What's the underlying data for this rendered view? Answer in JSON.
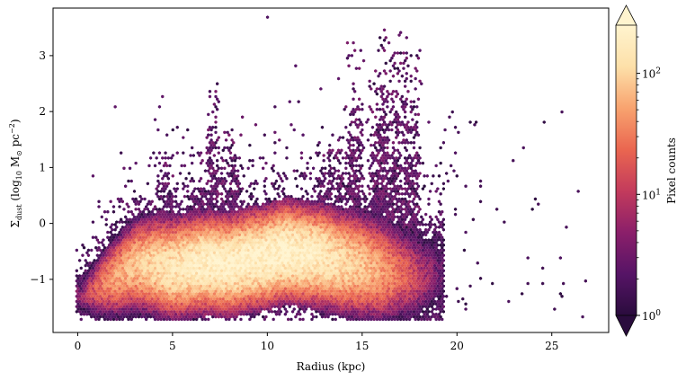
{
  "chart_data": {
    "type": "heatmap",
    "subtype": "hexbin",
    "xlabel": "Radius (kpc)",
    "ylabel_parts": {
      "sym": "Σ",
      "sub": "dust",
      "open": " (log",
      "logsub": "10",
      "unit": " M",
      "sun": "⊙",
      "pc": " pc",
      "exp": "−2",
      "close": ")"
    },
    "xlim": [
      -1.3,
      28
    ],
    "ylim": [
      -1.95,
      3.85
    ],
    "xticks": [
      0,
      5,
      10,
      15,
      20,
      25
    ],
    "xtick_labels": [
      "0",
      "5",
      "10",
      "15",
      "20",
      "25"
    ],
    "yticks": [
      -1,
      0,
      1,
      2,
      3
    ],
    "ytick_labels": [
      "−1",
      "0",
      "1",
      "2",
      "3"
    ],
    "density_ridge": [
      {
        "x": 0.2,
        "y_center": -1.3,
        "spread": 0.25,
        "peak_count": 5
      },
      {
        "x": 1.0,
        "y_center": -1.15,
        "spread": 0.4,
        "peak_count": 20
      },
      {
        "x": 2.0,
        "y_center": -0.95,
        "spread": 0.5,
        "peak_count": 50
      },
      {
        "x": 3.0,
        "y_center": -0.75,
        "spread": 0.55,
        "peak_count": 80
      },
      {
        "x": 4.0,
        "y_center": -0.75,
        "spread": 0.6,
        "peak_count": 110
      },
      {
        "x": 5.0,
        "y_center": -0.8,
        "spread": 0.6,
        "peak_count": 150
      },
      {
        "x": 6.0,
        "y_center": -0.75,
        "spread": 0.6,
        "peak_count": 180
      },
      {
        "x": 7.0,
        "y_center": -0.7,
        "spread": 0.6,
        "peak_count": 200
      },
      {
        "x": 8.0,
        "y_center": -0.75,
        "spread": 0.6,
        "peak_count": 200
      },
      {
        "x": 9.0,
        "y_center": -0.65,
        "spread": 0.6,
        "peak_count": 210
      },
      {
        "x": 10.0,
        "y_center": -0.6,
        "spread": 0.6,
        "peak_count": 220
      },
      {
        "x": 11.0,
        "y_center": -0.5,
        "spread": 0.6,
        "peak_count": 230
      },
      {
        "x": 12.0,
        "y_center": -0.55,
        "spread": 0.6,
        "peak_count": 200
      },
      {
        "x": 13.0,
        "y_center": -0.6,
        "spread": 0.62,
        "peak_count": 160
      },
      {
        "x": 14.0,
        "y_center": -0.7,
        "spread": 0.62,
        "peak_count": 120
      },
      {
        "x": 15.0,
        "y_center": -0.75,
        "spread": 0.65,
        "peak_count": 80
      },
      {
        "x": 16.0,
        "y_center": -0.85,
        "spread": 0.65,
        "peak_count": 50
      },
      {
        "x": 17.0,
        "y_center": -0.9,
        "spread": 0.6,
        "peak_count": 25
      },
      {
        "x": 18.0,
        "y_center": -0.95,
        "spread": 0.6,
        "peak_count": 10
      },
      {
        "x": 19.0,
        "y_center": -0.9,
        "spread": 0.55,
        "peak_count": 3
      }
    ],
    "colorbar": {
      "label": "Pixel counts",
      "scale": "log",
      "range": [
        1,
        250
      ],
      "ticks": [
        1,
        10,
        100
      ],
      "tick_base": "10",
      "tick_exps": [
        "0",
        "1",
        "2"
      ],
      "colormap": "magma-like",
      "colors": [
        "#2a0c3d",
        "#561466",
        "#8b1f6a",
        "#c33b5c",
        "#ea6650",
        "#f8a36f",
        "#fde0a9",
        "#fff4cf"
      ]
    }
  }
}
